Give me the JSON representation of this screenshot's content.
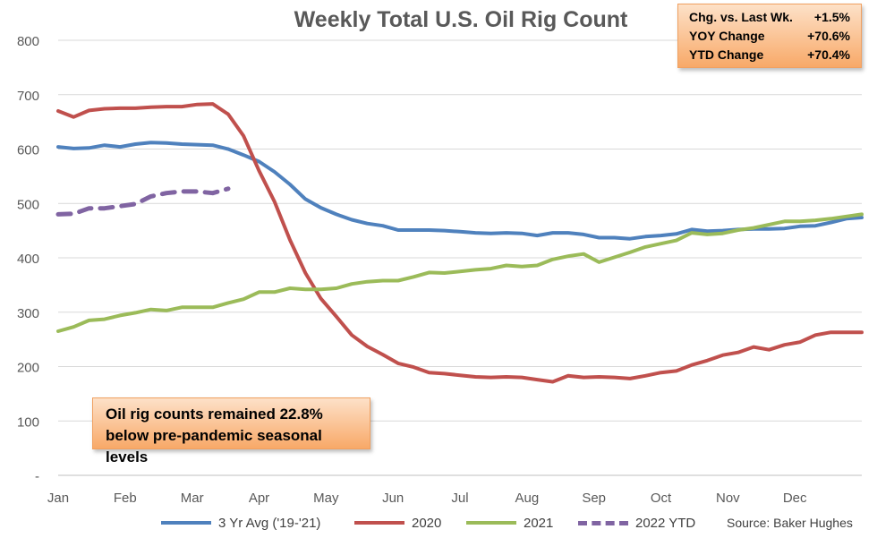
{
  "chart_data": {
    "type": "line",
    "title": "Weekly Total U.S. Oil Rig Count",
    "xlabel": "",
    "ylabel": "",
    "ylim": [
      0,
      800
    ],
    "yticks": [
      "-",
      "100",
      "200",
      "300",
      "400",
      "500",
      "600",
      "700",
      "800"
    ],
    "xticks": [
      "Jan",
      "Feb",
      "Mar",
      "Apr",
      "May",
      "Jun",
      "Jul",
      "Aug",
      "Sep",
      "Oct",
      "Nov",
      "Dec"
    ],
    "grid": "horizontal",
    "legend_position": "bottom",
    "series": [
      {
        "name": "3 Yr Avg ('19-'21)",
        "color": "#4f81bd",
        "style": "solid",
        "values": [
          604,
          601,
          602,
          607,
          604,
          609,
          612,
          611,
          609,
          608,
          607,
          600,
          589,
          577,
          558,
          535,
          508,
          492,
          480,
          470,
          463,
          459,
          451,
          451,
          451,
          450,
          448,
          446,
          445,
          446,
          445,
          441,
          446,
          446,
          443,
          437,
          437,
          435,
          439,
          441,
          444,
          452,
          449,
          450,
          452,
          453,
          453,
          454,
          458,
          459,
          465,
          472,
          474
        ]
      },
      {
        "name": "2020",
        "color": "#c0504d",
        "style": "solid",
        "values": [
          670,
          659,
          671,
          674,
          675,
          675,
          677,
          678,
          678,
          682,
          683,
          664,
          624,
          560,
          503,
          433,
          372,
          325,
          292,
          258,
          237,
          222,
          206,
          199,
          189,
          187,
          184,
          181,
          180,
          181,
          180,
          176,
          172,
          183,
          180,
          181,
          180,
          178,
          183,
          189,
          192,
          203,
          211,
          221,
          226,
          236,
          231,
          240,
          245,
          258,
          263,
          263,
          263
        ]
      },
      {
        "name": "2021",
        "color": "#9bbb59",
        "style": "solid",
        "values": [
          265,
          273,
          285,
          287,
          294,
          299,
          305,
          303,
          309,
          309,
          309,
          317,
          324,
          337,
          337,
          344,
          342,
          342,
          344,
          352,
          356,
          358,
          358,
          365,
          373,
          372,
          375,
          378,
          380,
          386,
          384,
          386,
          397,
          403,
          407,
          392,
          401,
          410,
          420,
          426,
          432,
          446,
          443,
          445,
          451,
          455,
          461,
          467,
          467,
          469,
          472,
          476,
          480
        ]
      },
      {
        "name": "2022 YTD",
        "color": "#8064a2",
        "style": "dashed",
        "values": [
          480,
          481,
          491,
          491,
          495,
          499,
          513,
          519,
          522,
          522,
          519,
          527
        ]
      }
    ],
    "annotations": {
      "stats": [
        {
          "label": "Chg. vs. Last Wk.",
          "value": "+1.5%"
        },
        {
          "label": "YOY Change",
          "value": "+70.6%"
        },
        {
          "label": "YTD Change",
          "value": "+70.4%"
        }
      ],
      "note_line1": "Oil rig counts remained 22.8%",
      "note_line2": "below pre-pandemic seasonal levels"
    },
    "source": "Source: Baker Hughes"
  }
}
